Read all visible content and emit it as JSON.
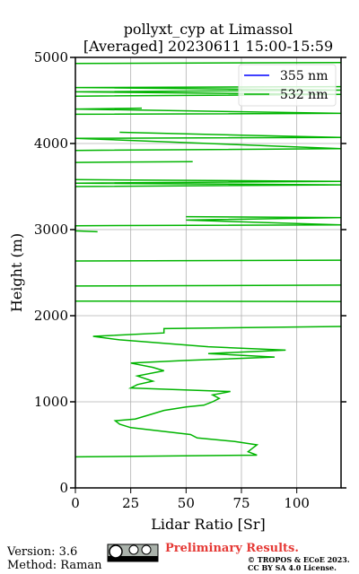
{
  "chart_data": {
    "type": "line",
    "title": "pollyxt_cyp at Limassol",
    "subtitle": "[Averaged] 20230611 15:00-15:59",
    "x_label": "Lidar Ratio [Sr]",
    "y_label": "Height (m)",
    "xlim": [
      0,
      120
    ],
    "xticks": [
      0,
      25,
      50,
      75,
      100
    ],
    "ylim": [
      0,
      5000
    ],
    "yticks": [
      0,
      1000,
      2000,
      3000,
      4000,
      5000
    ],
    "grid": true,
    "legend": "upper right",
    "heights": [
      360,
      380,
      420,
      460,
      500,
      540,
      580,
      620,
      700,
      740,
      780,
      800,
      860,
      900,
      940,
      960,
      1000,
      1040,
      1080,
      1120,
      1160,
      1200,
      1240,
      1300,
      1360,
      1400,
      1450,
      1480,
      1520,
      1560,
      1600,
      1640,
      1680,
      1720,
      1760,
      1800,
      1850,
      1875,
      1900,
      2165,
      2170,
      2180,
      2345,
      2355,
      2400,
      2635,
      2645,
      2700,
      2975,
      2985,
      3045,
      3055,
      3110,
      3140,
      3150,
      3200,
      3500,
      3520,
      3540,
      3560,
      3580,
      3600,
      3780,
      3790,
      3850,
      3920,
      3940,
      4060,
      4070,
      4130,
      4200,
      4340,
      4350,
      4400,
      4410,
      4450,
      4550,
      4570,
      4600,
      4620,
      4650,
      4660,
      4700,
      4930,
      4940
    ],
    "series": [
      {
        "name": "355 nm",
        "color": "#0000ff",
        "values": [
          null,
          null,
          null,
          null,
          null,
          null,
          null,
          null,
          null,
          null,
          null,
          null,
          null,
          null,
          null,
          null,
          null,
          null,
          null,
          null,
          null,
          null,
          null,
          null,
          null,
          null,
          null,
          null,
          null,
          null,
          null,
          null,
          null,
          null,
          null,
          null,
          null,
          null,
          null,
          null,
          null,
          null,
          null,
          null,
          null,
          null,
          null,
          null,
          null,
          null,
          null,
          null,
          null,
          null,
          null,
          null,
          null,
          null,
          null,
          null,
          null,
          null,
          null,
          null,
          null,
          null,
          null,
          null,
          null,
          null,
          null,
          null,
          null,
          null,
          null,
          null,
          null,
          null,
          null,
          null,
          null,
          null,
          null,
          null,
          null
        ]
      },
      {
        "name": "532 nm",
        "color": "#00b400",
        "values": [
          0,
          82,
          78,
          80,
          82,
          72,
          55,
          52,
          25,
          20,
          18,
          27,
          35,
          40,
          50,
          58,
          62,
          65,
          62,
          70,
          25,
          28,
          35,
          28,
          40,
          35,
          25,
          50,
          90,
          60,
          95,
          60,
          40,
          20,
          8,
          40,
          40,
          120,
          null,
          120,
          0,
          null,
          0,
          120,
          null,
          0,
          120,
          null,
          10,
          0,
          0,
          120,
          50,
          120,
          50,
          null,
          0,
          120,
          0,
          120,
          0,
          null,
          0,
          53,
          null,
          0,
          120,
          0,
          120,
          20,
          null,
          0,
          120,
          0,
          30,
          null,
          0,
          120,
          0,
          120,
          0,
          120,
          null,
          0,
          120
        ]
      }
    ],
    "footer": {
      "version": "Version: 3.6",
      "method": "Method: Raman",
      "notice": "Preliminary Results.",
      "copyright": "© TROPOS & ECoE 2023.",
      "license": "CC BY SA 4.0 License."
    }
  }
}
